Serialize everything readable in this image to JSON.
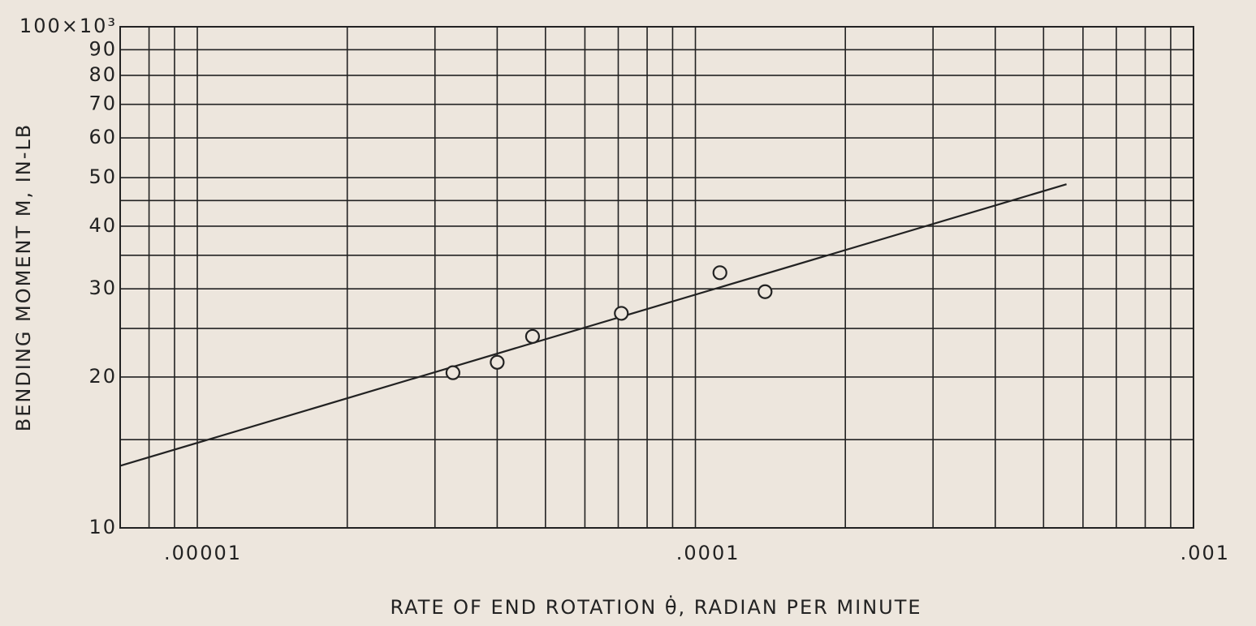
{
  "chart_data": {
    "type": "scatter",
    "xlabel": "RATE OF END ROTATION θ̇, RADIAN PER MINUTE",
    "ylabel": "BENDING MOMENT M, IN-LB",
    "x_log": true,
    "y_log": true,
    "grid": true,
    "color": "#222222",
    "xlim": [
      7e-06,
      0.001
    ],
    "ylim": [
      10,
      100
    ],
    "xticks": [
      {
        "value": 1e-05,
        "label": ".00001"
      },
      {
        "value": 0.0001,
        "label": ".0001"
      },
      {
        "value": 0.001,
        "label": ".001"
      }
    ],
    "yticks": [
      10,
      20,
      30,
      40,
      50,
      60,
      70,
      80,
      90,
      {
        "value": 100,
        "label": "100×10³"
      }
    ],
    "x_minor_grid": [
      8e-06,
      9e-06,
      2e-05,
      3e-05,
      4e-05,
      5e-05,
      6e-05,
      7e-05,
      8e-05,
      9e-05,
      0.0002,
      0.0003,
      0.0004,
      0.0005,
      0.0006,
      0.0007,
      0.0008,
      0.0009
    ],
    "y_minor_grid": [
      15,
      25,
      35,
      45
    ],
    "points": {
      "x": [
        3.26e-05,
        4e-05,
        4.71e-05,
        7.1e-05,
        0.000112,
        0.000138
      ],
      "y": [
        20.4,
        21.4,
        24.1,
        26.8,
        32.3,
        29.6
      ]
    },
    "fit_line": {
      "x": [
        7e-06,
        0.000556
      ],
      "y": [
        13.3,
        48.5
      ]
    }
  }
}
